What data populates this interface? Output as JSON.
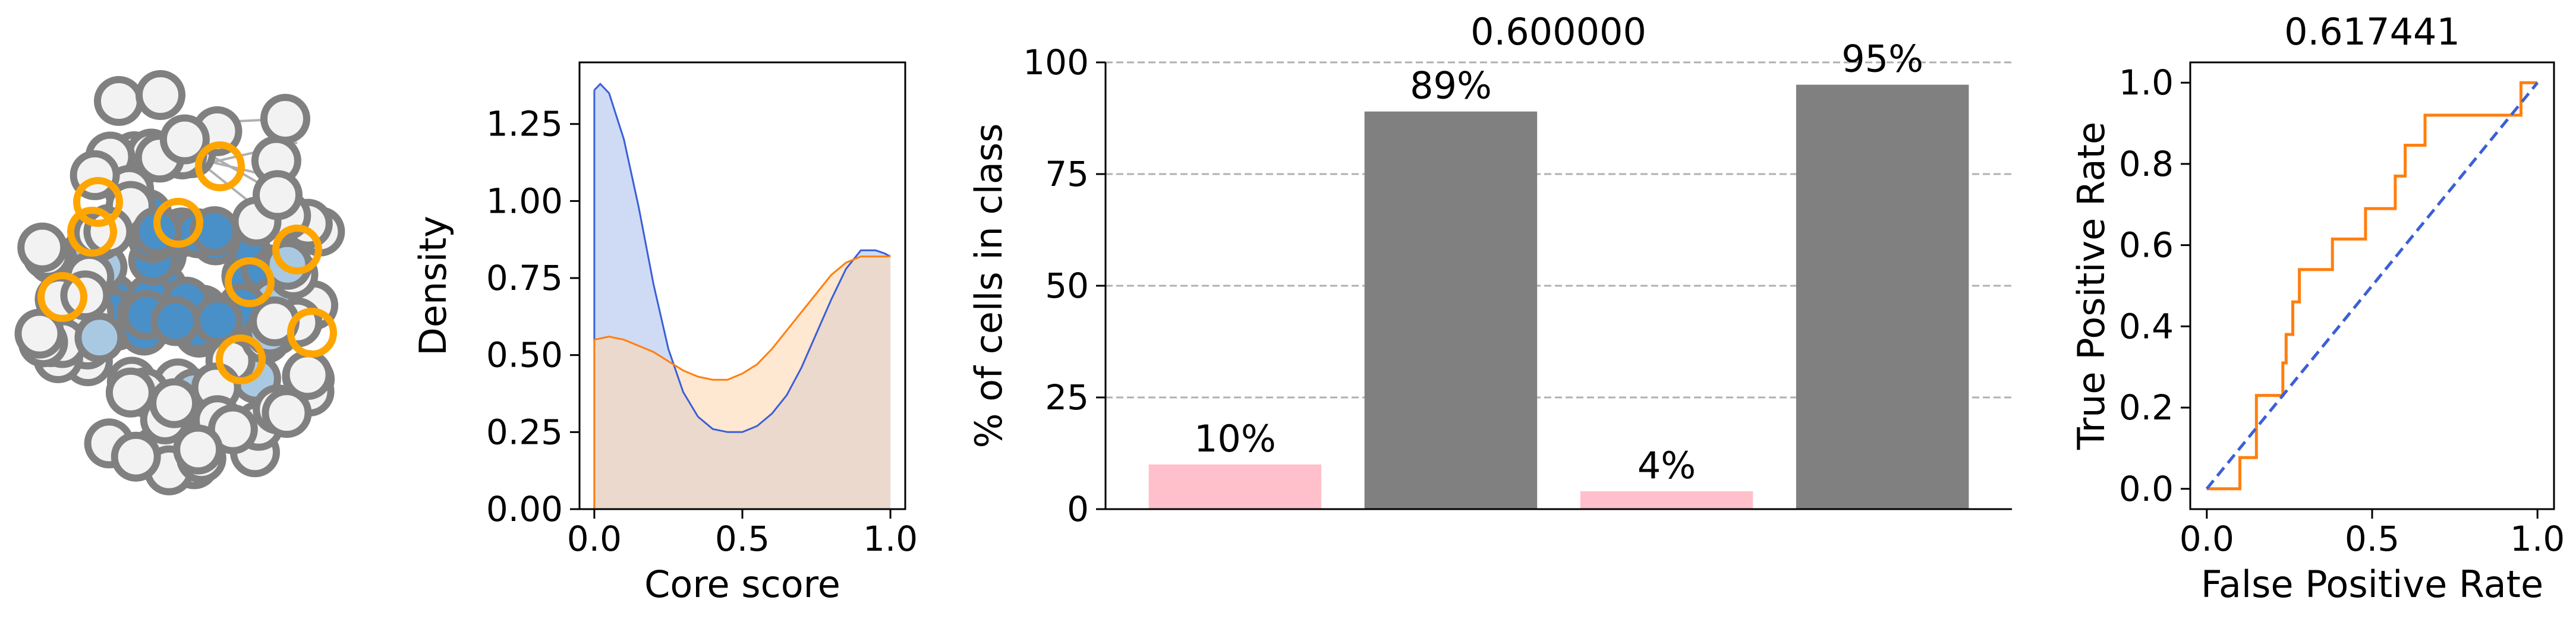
{
  "colors": {
    "network_gray": "#808080",
    "network_fill_light": "#f2f2f2",
    "network_fill_blue": "#4a90c8",
    "network_fill_lightblue": "#a9c9e3",
    "network_highlight": "#ffa500",
    "kde_blue_line": "#3b5fd6",
    "kde_blue_fill": "#cfdaf5",
    "kde_orange_line": "#ff7f0e",
    "kde_orange_fill": "#ffd9b3",
    "bar_pink": "#ffc0cb",
    "bar_gray": "#808080",
    "roc_line": "#ff7f0e",
    "roc_diag": "#3b5fd6"
  },
  "network": {
    "description_icon": "network-graph-icon"
  },
  "chart_data": [
    {
      "type": "area",
      "title": "",
      "xlabel": "Core score",
      "ylabel": "Density",
      "xlim": [
        -0.05,
        1.05
      ],
      "ylim": [
        0,
        1.45
      ],
      "xticks": [
        "0.0",
        "0.5",
        "1.0"
      ],
      "yticks": [
        "0.00",
        "0.25",
        "0.50",
        "0.75",
        "1.00",
        "1.25"
      ],
      "series": [
        {
          "color_key": "kde_blue",
          "x": [
            0.0,
            0.02,
            0.05,
            0.1,
            0.15,
            0.2,
            0.25,
            0.3,
            0.35,
            0.4,
            0.45,
            0.5,
            0.55,
            0.6,
            0.65,
            0.7,
            0.75,
            0.8,
            0.85,
            0.9,
            0.95,
            0.98,
            1.0
          ],
          "y": [
            1.36,
            1.38,
            1.35,
            1.2,
            0.98,
            0.73,
            0.52,
            0.38,
            0.3,
            0.26,
            0.25,
            0.25,
            0.27,
            0.31,
            0.37,
            0.46,
            0.57,
            0.68,
            0.78,
            0.84,
            0.84,
            0.83,
            0.82
          ]
        },
        {
          "color_key": "kde_orange",
          "x": [
            0.0,
            0.05,
            0.1,
            0.15,
            0.2,
            0.25,
            0.3,
            0.35,
            0.4,
            0.45,
            0.5,
            0.55,
            0.6,
            0.65,
            0.7,
            0.75,
            0.8,
            0.85,
            0.9,
            0.95,
            1.0
          ],
          "y": [
            0.55,
            0.56,
            0.55,
            0.53,
            0.51,
            0.48,
            0.45,
            0.43,
            0.42,
            0.42,
            0.44,
            0.47,
            0.52,
            0.58,
            0.64,
            0.7,
            0.76,
            0.8,
            0.82,
            0.82,
            0.82
          ]
        }
      ]
    },
    {
      "type": "bar",
      "title": "0.600000",
      "xlabel": "",
      "ylabel": "% of cells in class",
      "ylim": [
        0,
        100
      ],
      "yticks": [
        "0",
        "25",
        "50",
        "75",
        "100"
      ],
      "grid": true,
      "values": [
        10,
        89,
        4,
        95
      ],
      "value_labels": [
        "10%",
        "89%",
        "4%",
        "95%"
      ],
      "bar_colors": [
        "bar_pink",
        "bar_gray",
        "bar_pink",
        "bar_gray"
      ]
    },
    {
      "type": "line",
      "title": "0.617441",
      "xlabel": "False Positive Rate",
      "ylabel": "True Positive Rate",
      "xlim": [
        -0.05,
        1.05
      ],
      "ylim": [
        -0.05,
        1.05
      ],
      "xticks": [
        "0.0",
        "0.5",
        "1.0"
      ],
      "yticks": [
        "0.0",
        "0.2",
        "0.4",
        "0.6",
        "0.8",
        "1.0"
      ],
      "series": [
        {
          "color_key": "roc_line",
          "x": [
            0.0,
            0.1,
            0.1,
            0.15,
            0.15,
            0.18,
            0.18,
            0.23,
            0.23,
            0.24,
            0.24,
            0.26,
            0.26,
            0.28,
            0.28,
            0.32,
            0.32,
            0.38,
            0.38,
            0.48,
            0.48,
            0.57,
            0.57,
            0.6,
            0.6,
            0.66,
            0.66,
            0.95,
            0.95,
            1.0
          ],
          "y": [
            0.0,
            0.0,
            0.077,
            0.077,
            0.23,
            0.23,
            0.23,
            0.23,
            0.31,
            0.31,
            0.38,
            0.38,
            0.46,
            0.46,
            0.54,
            0.54,
            0.54,
            0.54,
            0.615,
            0.615,
            0.69,
            0.69,
            0.77,
            0.77,
            0.846,
            0.846,
            0.92,
            0.92,
            1.0,
            1.0
          ]
        },
        {
          "color_key": "roc_diag",
          "dashed": true,
          "x": [
            0,
            1
          ],
          "y": [
            0,
            1
          ]
        }
      ]
    }
  ]
}
